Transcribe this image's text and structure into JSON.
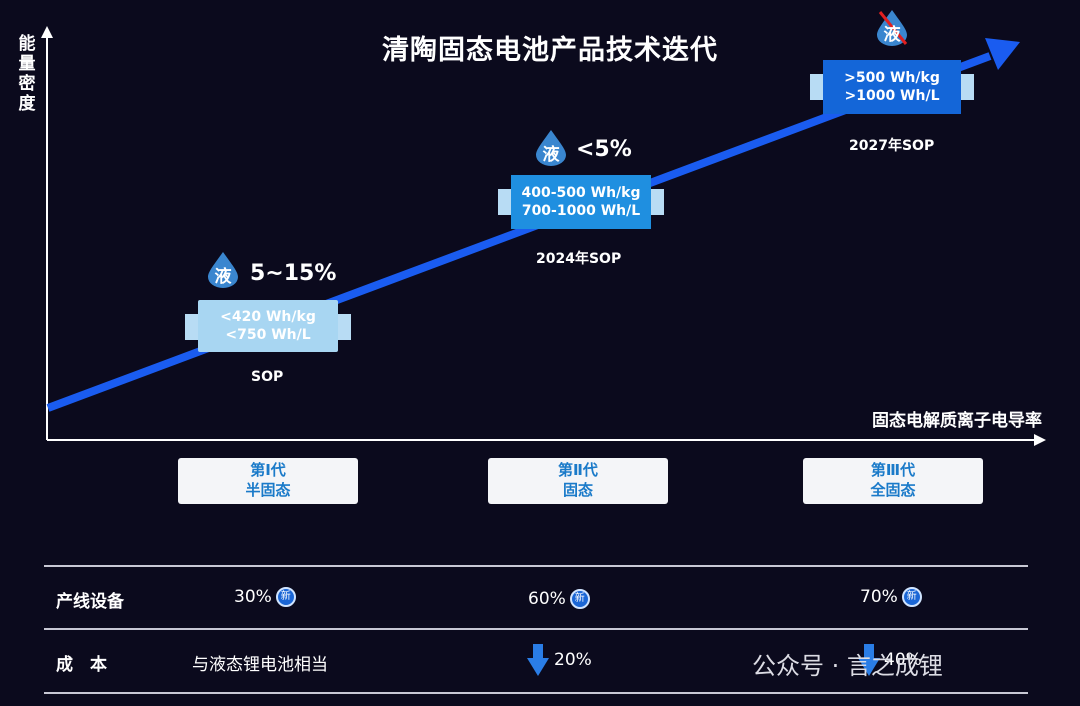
{
  "title": "清陶固态电池产品技术迭代",
  "y_axis_label": "能量密度",
  "x_axis_label": "固态电解质离子电导率",
  "stages": [
    {
      "liquid_badge": "液",
      "liquid_pct": "5~15%",
      "spec_lines": [
        "<420 Wh/kg",
        "<750 Wh/L"
      ],
      "sop": "SOP",
      "generation": "第Ⅰ代",
      "type": "半固态"
    },
    {
      "liquid_badge": "液",
      "liquid_pct": "<5%",
      "spec_lines": [
        "400-500 Wh/kg",
        "700-1000 Wh/L"
      ],
      "sop": "2024年SOP",
      "generation": "第Ⅱ代",
      "type": "固态"
    },
    {
      "liquid_badge": "液",
      "liquid_pct": "",
      "spec_lines": [
        ">500 Wh/kg",
        ">1000 Wh/L"
      ],
      "sop": "2027年SOP",
      "generation": "第Ⅲ代",
      "type": "全固态"
    }
  ],
  "table": {
    "rows": [
      {
        "label": "产线设备",
        "cells": [
          "30%",
          "60%",
          "70%"
        ],
        "badge": "新"
      },
      {
        "label": "成　本",
        "cells": [
          "与液态锂电池相当",
          "20%",
          "40%"
        ]
      }
    ]
  },
  "watermark": "公众号 · 言之成锂",
  "colors": {
    "background": "#0b0a1d",
    "arrow": "#1a5cf0",
    "accent_text": "#1a7ac9"
  }
}
